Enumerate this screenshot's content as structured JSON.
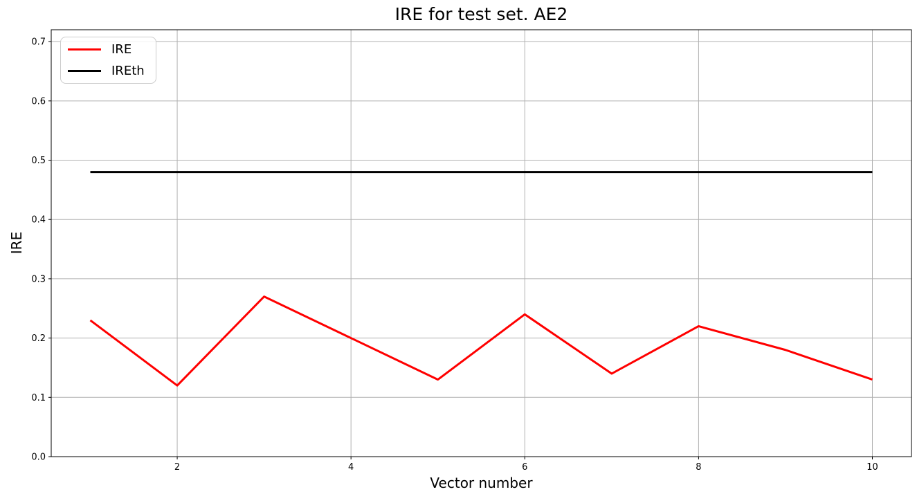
{
  "chart_data": {
    "type": "line",
    "title": "IRE for test set. AE2",
    "xlabel": "Vector number",
    "ylabel": "IRE",
    "x": [
      1,
      2,
      3,
      4,
      5,
      6,
      7,
      8,
      9,
      10
    ],
    "series": [
      {
        "name": "IRE",
        "color": "#ff0000",
        "line_width": 3,
        "values": [
          0.23,
          0.12,
          0.27,
          0.2,
          0.13,
          0.24,
          0.14,
          0.22,
          0.18,
          0.13
        ]
      },
      {
        "name": "IREth",
        "color": "#000000",
        "line_width": 3,
        "values": [
          0.48,
          0.48,
          0.48,
          0.48,
          0.48,
          0.48,
          0.48,
          0.48,
          0.48,
          0.48
        ]
      }
    ],
    "xlim": [
      0.55,
      10.45
    ],
    "ylim": [
      0.0,
      0.72
    ],
    "xticks": [
      2,
      4,
      6,
      8,
      10
    ],
    "xtick_labels": [
      "2",
      "4",
      "6",
      "8",
      "10"
    ],
    "yticks": [
      0.0,
      0.1,
      0.2,
      0.3,
      0.4,
      0.5,
      0.6,
      0.7
    ],
    "ytick_labels": [
      "0.0",
      "0.1",
      "0.2",
      "0.3",
      "0.4",
      "0.5",
      "0.6",
      "0.7"
    ],
    "grid": true,
    "grid_color": "#b0b0b0",
    "axes_edge_color": "#000000",
    "background_color": "#ffffff",
    "legend": {
      "position": "upper-left",
      "entries": [
        "IRE",
        "IREth"
      ]
    }
  }
}
